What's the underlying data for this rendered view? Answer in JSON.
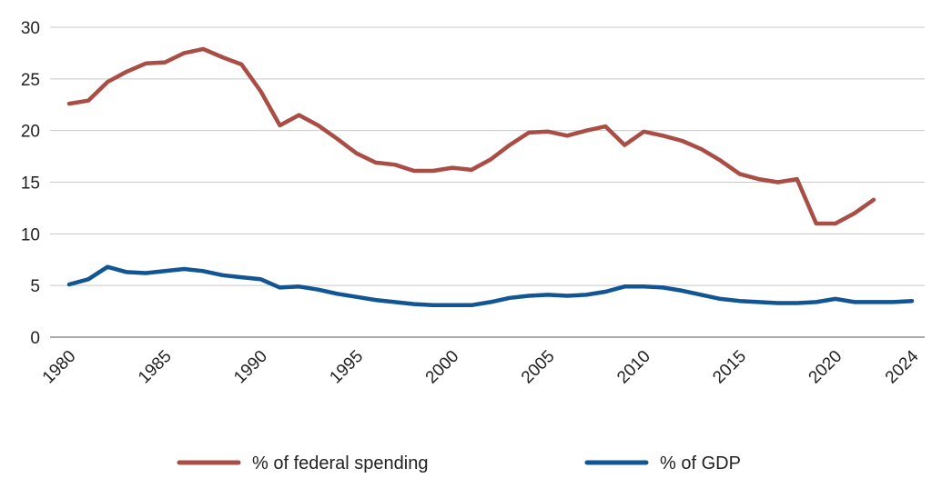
{
  "chart_data": {
    "type": "line",
    "title": "",
    "xlabel": "",
    "ylabel": "",
    "xlim": [
      1980,
      2024
    ],
    "ylim": [
      0,
      30
    ],
    "yticks": [
      0,
      5,
      10,
      15,
      20,
      25,
      30
    ],
    "xtick_labels": [
      "1980",
      "1985",
      "1990",
      "1995",
      "2000",
      "2005",
      "2010",
      "2015",
      "2020",
      "2024"
    ],
    "grid": "horizontal",
    "legend_position": "bottom",
    "x": [
      1980,
      1981,
      1982,
      1983,
      1984,
      1985,
      1986,
      1987,
      1988,
      1989,
      1990,
      1991,
      1992,
      1993,
      1994,
      1995,
      1996,
      1997,
      1998,
      1999,
      2000,
      2001,
      2002,
      2003,
      2004,
      2005,
      2006,
      2007,
      2008,
      2009,
      2010,
      2011,
      2012,
      2013,
      2014,
      2015,
      2016,
      2017,
      2018,
      2019,
      2020,
      2021,
      2022,
      2023,
      2024
    ],
    "series": [
      {
        "name": "% of federal spending",
        "color": "#a94d45",
        "values": [
          22.6,
          22.9,
          24.7,
          25.7,
          26.5,
          26.6,
          27.5,
          27.9,
          27.1,
          26.4,
          23.8,
          20.5,
          21.5,
          20.5,
          19.2,
          17.8,
          16.9,
          16.7,
          16.1,
          16.1,
          16.4,
          16.2,
          17.2,
          18.6,
          19.8,
          19.9,
          19.5,
          20.0,
          20.4,
          18.6,
          19.9,
          19.5,
          19.0,
          18.2,
          17.1,
          15.8,
          15.3,
          15.0,
          15.3,
          11.0,
          11.0,
          12.0,
          13.3,
          null,
          null
        ]
      },
      {
        "name": "% of GDP",
        "color": "#115594",
        "values": [
          5.1,
          5.6,
          6.8,
          6.3,
          6.2,
          6.4,
          6.6,
          6.4,
          6.0,
          5.8,
          5.6,
          4.8,
          4.9,
          4.6,
          4.2,
          3.9,
          3.6,
          3.4,
          3.2,
          3.1,
          3.1,
          3.1,
          3.4,
          3.8,
          4.0,
          4.1,
          4.0,
          4.1,
          4.4,
          4.9,
          4.9,
          4.8,
          4.5,
          4.1,
          3.7,
          3.5,
          3.4,
          3.3,
          3.3,
          3.4,
          3.7,
          3.4,
          3.4,
          3.4,
          3.5
        ]
      }
    ]
  }
}
